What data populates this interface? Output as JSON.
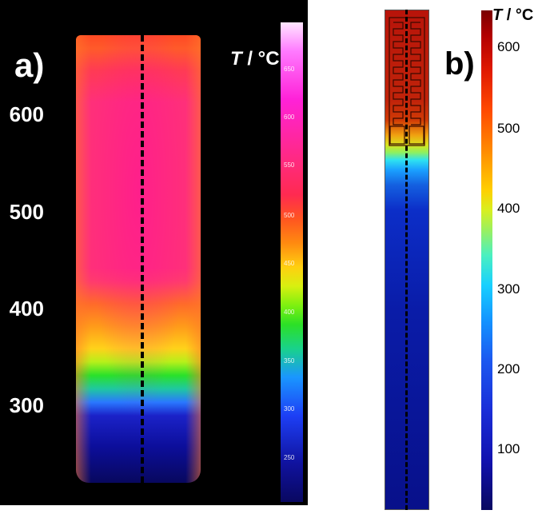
{
  "panel_a": {
    "label": "a)",
    "unit_italic": "T",
    "unit_rest": " / °C",
    "colorbar_major": [
      "600",
      "500",
      "400",
      "300"
    ],
    "colorbar_minor": [
      "650",
      "600",
      "550",
      "500",
      "450",
      "400",
      "350",
      "300",
      "250"
    ]
  },
  "panel_b": {
    "label": "b)",
    "unit_italic": "T",
    "unit_rest": " / °C",
    "colorbar_ticks": [
      "600",
      "500",
      "400",
      "300",
      "200",
      "100"
    ]
  }
}
